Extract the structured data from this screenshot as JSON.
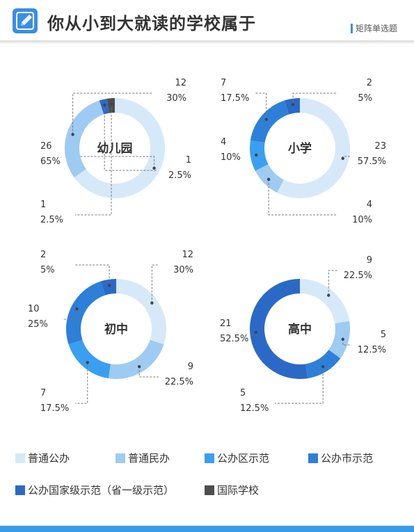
{
  "header": {
    "title": "你从小到大就读的学校属于",
    "tag": "矩阵单选题",
    "icon": "pencil-icon"
  },
  "colors": {
    "普通公办": "#d6e9f9",
    "普通民办": "#9ecbf2",
    "公办区示范": "#3a9ff0",
    "公办市示范": "#2d7fd8",
    "公办国家级示范（省一级示范）": "#2b69c6",
    "国际学校": "#4d4d4d"
  },
  "legend": [
    "普通公办",
    "普通民办",
    "公办区示范",
    "公办市示范",
    "公办国家级示范（省一级示范）",
    "国际学校"
  ],
  "chart_data": [
    {
      "type": "pie",
      "title": "幼儿园",
      "categories": [
        "普通公办",
        "普通民办",
        "公办国家级示范（省一级示范）",
        "国际学校"
      ],
      "counts": [
        26,
        12,
        1,
        1
      ],
      "labels": [
        "65%",
        "30%",
        "2.5%",
        "2.5%"
      ],
      "values": [
        65,
        30,
        2.5,
        2.5
      ]
    },
    {
      "type": "pie",
      "title": "小学",
      "categories": [
        "普通公办",
        "普通民办",
        "公办区示范",
        "公办市示范",
        "公办国家级示范（省一级示范）"
      ],
      "counts": [
        23,
        4,
        4,
        7,
        2
      ],
      "labels": [
        "57.5%",
        "10%",
        "10%",
        "17.5%",
        "5%"
      ],
      "values": [
        57.5,
        10,
        10,
        17.5,
        5
      ]
    },
    {
      "type": "pie",
      "title": "初中",
      "categories": [
        "普通公办",
        "普通民办",
        "公办区示范",
        "公办市示范",
        "公办国家级示范（省一级示范）"
      ],
      "counts": [
        12,
        9,
        7,
        10,
        2
      ],
      "labels": [
        "30%",
        "22.5%",
        "17.5%",
        "25%",
        "5%"
      ],
      "values": [
        30,
        22.5,
        17.5,
        25,
        5
      ]
    },
    {
      "type": "pie",
      "title": "高中",
      "categories": [
        "普通公办",
        "普通民办",
        "公办市示范",
        "公办国家级示范（省一级示范）"
      ],
      "counts": [
        9,
        5,
        5,
        21
      ],
      "labels": [
        "22.5%",
        "12.5%",
        "12.5%",
        "52.5%"
      ],
      "values": [
        22.5,
        12.5,
        12.5,
        52.5
      ]
    }
  ]
}
